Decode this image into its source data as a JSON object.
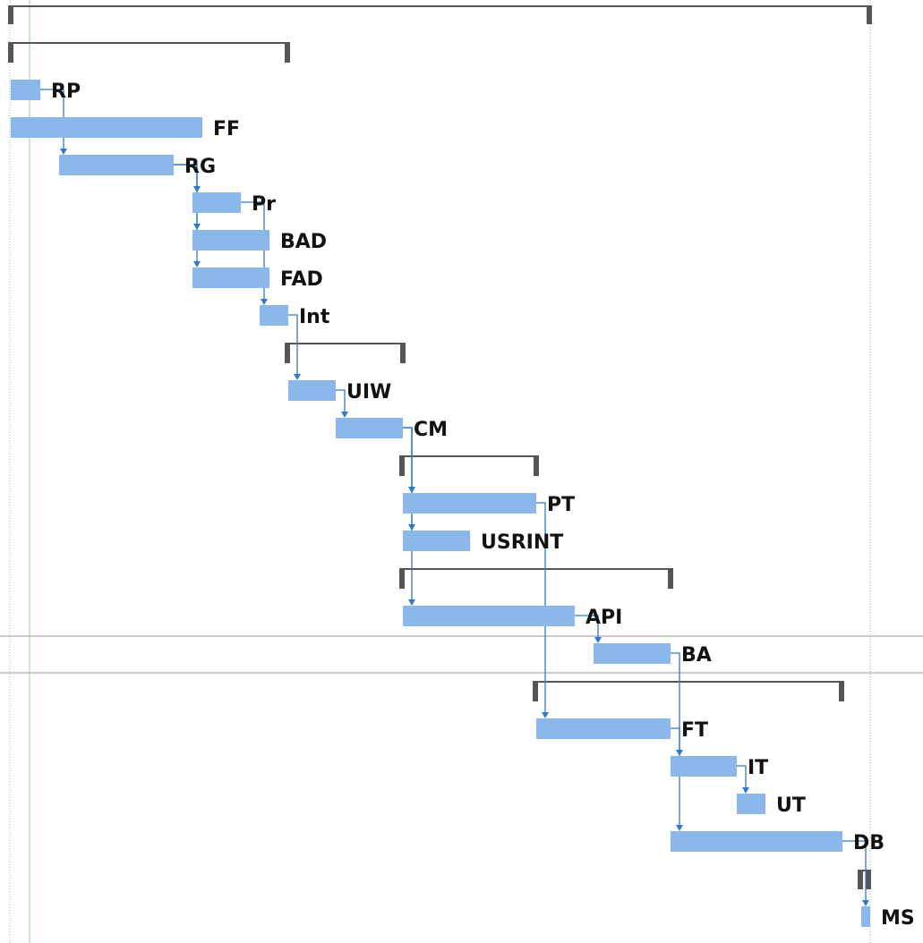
{
  "colors": {
    "task_bar": "#8ab8ea",
    "summary_bar": "#555555",
    "link": "#2f7bc8",
    "today_line": "#9ccc9c",
    "row_line": "#9a9a9a",
    "project_edge": "#a8a8a8"
  },
  "tasks": [
    {
      "id": "RP",
      "label": "RP"
    },
    {
      "id": "FF",
      "label": "FF"
    },
    {
      "id": "RG",
      "label": "RG"
    },
    {
      "id": "Pr",
      "label": "Pr"
    },
    {
      "id": "BAD",
      "label": "BAD"
    },
    {
      "id": "FAD",
      "label": "FAD"
    },
    {
      "id": "Int",
      "label": "Int"
    },
    {
      "id": "UIW",
      "label": "UIW"
    },
    {
      "id": "CM",
      "label": "CM"
    },
    {
      "id": "PT",
      "label": "PT"
    },
    {
      "id": "USRINT",
      "label": "USRINT"
    },
    {
      "id": "API",
      "label": "API"
    },
    {
      "id": "BA",
      "label": "BA"
    },
    {
      "id": "FT",
      "label": "FT"
    },
    {
      "id": "IT",
      "label": "IT"
    },
    {
      "id": "UT",
      "label": "UT"
    },
    {
      "id": "DB",
      "label": "DB"
    },
    {
      "id": "MS",
      "label": "MS"
    }
  ],
  "dependencies": [
    [
      "RP",
      "RG"
    ],
    [
      "RG",
      "Pr"
    ],
    [
      "RG",
      "BAD"
    ],
    [
      "RG",
      "FAD"
    ],
    [
      "Pr",
      "Int"
    ],
    [
      "Int",
      "UIW"
    ],
    [
      "UIW",
      "CM"
    ],
    [
      "CM",
      "PT"
    ],
    [
      "CM",
      "USRINT"
    ],
    [
      "CM",
      "API"
    ],
    [
      "API",
      "BA"
    ],
    [
      "PT",
      "FT"
    ],
    [
      "FT",
      "IT"
    ],
    [
      "IT",
      "UT"
    ],
    [
      "BA",
      "DB"
    ],
    [
      "DB",
      "MS"
    ]
  ]
}
